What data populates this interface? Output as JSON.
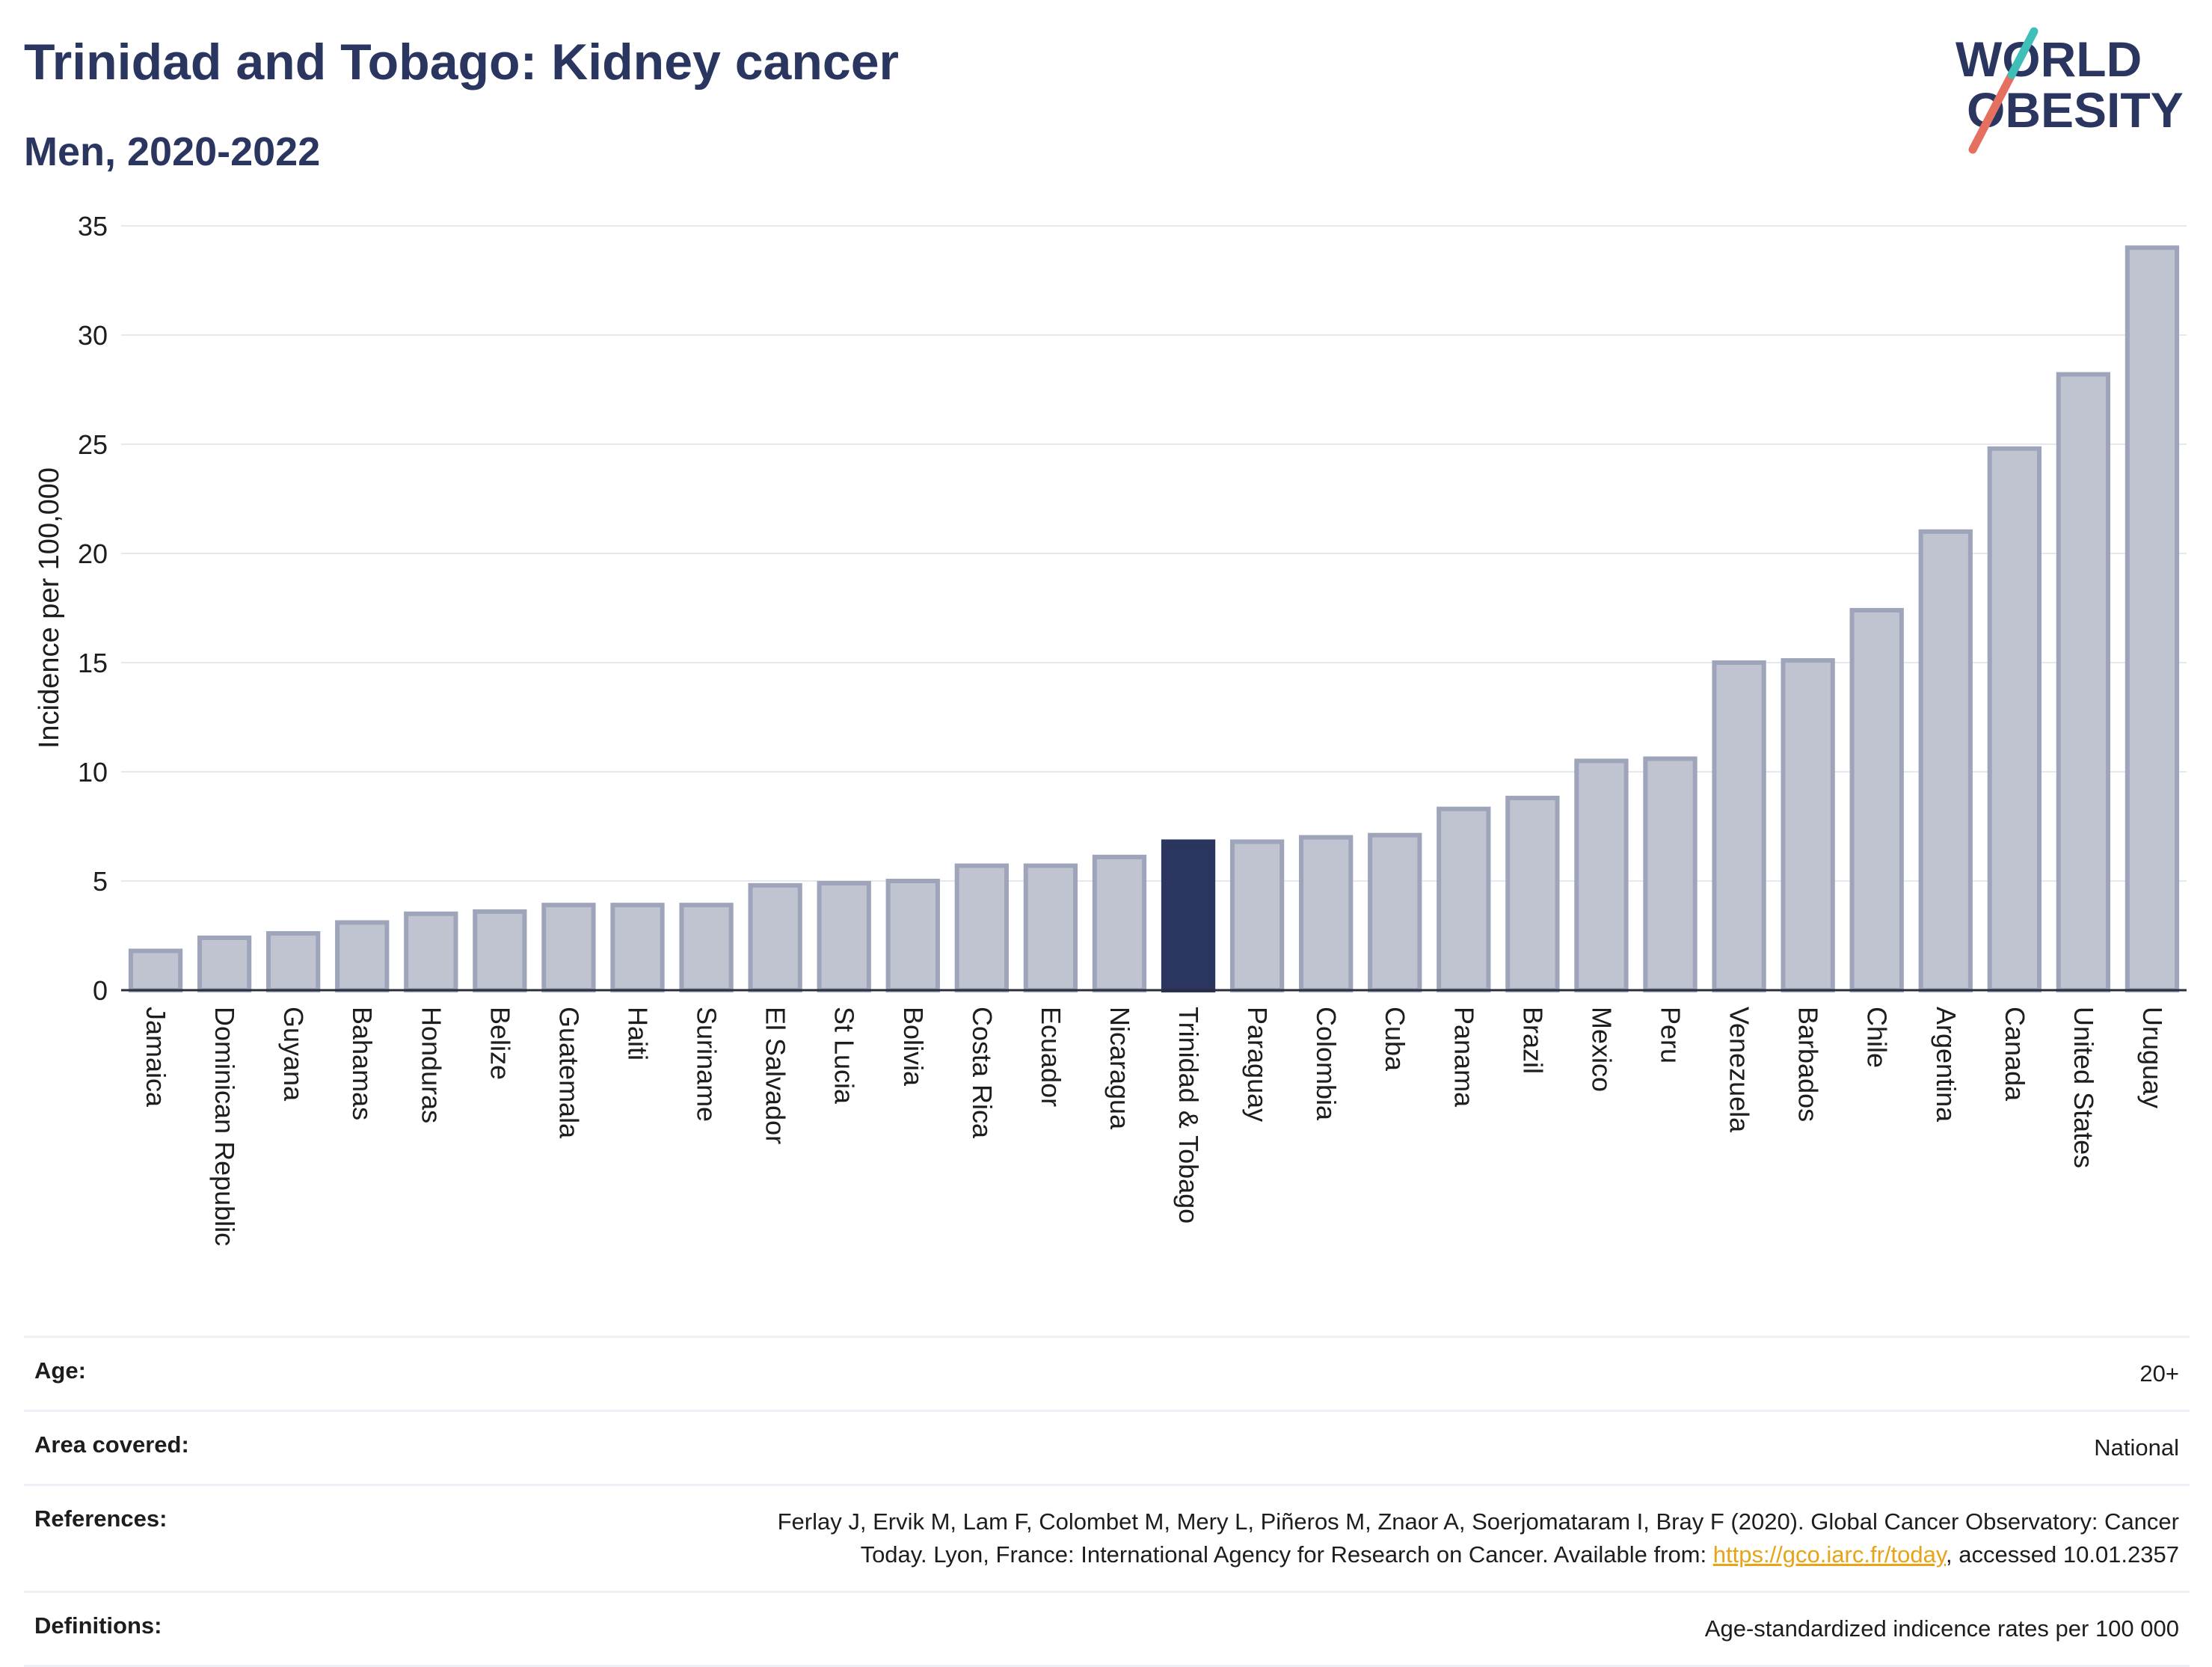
{
  "header": {
    "title": "Trinidad and Tobago: Kidney cancer",
    "subtitle": "Men, 2020-2022"
  },
  "logo": {
    "line1": "WORLD",
    "line2": "OBESITY",
    "colors": {
      "text": "#2a3560",
      "slash_red": "#e5705f",
      "slash_teal": "#3fbfb8"
    }
  },
  "chart_data": {
    "type": "bar",
    "ylabel": "Incidence per 100,000",
    "ylim": [
      0,
      35
    ],
    "yticks": [
      0,
      5,
      10,
      15,
      20,
      25,
      30,
      35
    ],
    "grid": true,
    "highlight": "Trinidad & Tobago",
    "colors": {
      "bar": "#c0c4d1",
      "bar_edge": "#9ea4ba",
      "highlight": "#2a3560",
      "grid": "#e6e8ee"
    },
    "categories": [
      "Jamaica",
      "Dominican Republic",
      "Guyana",
      "Bahamas",
      "Honduras",
      "Belize",
      "Guatemala",
      "Haiti",
      "Suriname",
      "El Salvador",
      "St Lucia",
      "Bolivia",
      "Costa Rica",
      "Ecuador",
      "Nicaragua",
      "Trinidad & Tobago",
      "Paraguay",
      "Colombia",
      "Cuba",
      "Panama",
      "Brazil",
      "Mexico",
      "Peru",
      "Venezuela",
      "Barbados",
      "Chile",
      "Argentina",
      "Canada",
      "United States",
      "Uruguay"
    ],
    "values": [
      1.8,
      2.4,
      2.6,
      3.1,
      3.5,
      3.6,
      3.9,
      3.9,
      3.9,
      4.8,
      4.9,
      5.0,
      5.7,
      5.7,
      6.1,
      6.8,
      6.8,
      7.0,
      7.1,
      8.3,
      8.8,
      10.5,
      10.6,
      15.0,
      15.1,
      17.4,
      21.0,
      24.8,
      28.2,
      34.0
    ]
  },
  "info": {
    "age_label": "Age:",
    "age_value": "20+",
    "area_label": "Area covered:",
    "area_value": "National",
    "ref_label": "References:",
    "ref_line1": "Ferlay J, Ervik M, Lam F, Colombet M, Mery L, Piñeros M, Znaor A, Soerjomataram I, Bray F (2020). Global Cancer Observatory: Cancer",
    "ref_line2_pre": "Today. Lyon, France: International Agency for Research on Cancer. Available from: ",
    "ref_link": "https://gco.iarc.fr/today",
    "ref_line2_post": ", accessed 10.01.2357",
    "def_label": "Definitions:",
    "def_value": "Age-standardized indicence rates per 100 000"
  }
}
